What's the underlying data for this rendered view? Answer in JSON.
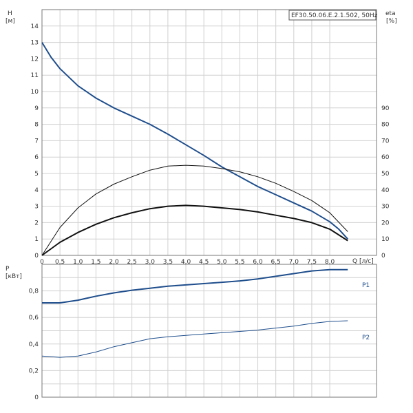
{
  "chart_data": [
    {
      "type": "line",
      "title": "EF30.50.06.E.2.1.502, 50Hz",
      "xlabel": "Q [л/с]",
      "ylabel_left_name": "H",
      "ylabel_left_unit": "[м]",
      "ylabel_right_name": "eta",
      "ylabel_right_unit": "[%]",
      "x_ticks": [
        "0",
        "0,5",
        "1,0",
        "1,5",
        "2,0",
        "2,5",
        "3,0",
        "3,5",
        "4,0",
        "4,5",
        "5,0",
        "5,5",
        "6,0",
        "6,5",
        "7,0",
        "7,5",
        "8,0"
      ],
      "y_left_ticks": [
        "0",
        "1",
        "2",
        "3",
        "4",
        "5",
        "6",
        "7",
        "8",
        "9",
        "10",
        "11",
        "12",
        "13",
        "14"
      ],
      "y_right_ticks": [
        "0",
        "10",
        "20",
        "30",
        "40",
        "50",
        "60",
        "70",
        "80",
        "90"
      ],
      "xlim": [
        0,
        9.3
      ],
      "ylim_left": [
        0,
        15
      ],
      "ylim_right": [
        0,
        150
      ],
      "grid": true,
      "series": [
        {
          "axis": "left",
          "color": "#1f4e8c",
          "points": [
            [
              0,
              13
            ],
            [
              0.25,
              12.1
            ],
            [
              0.5,
              11.4
            ],
            [
              1,
              10.35
            ],
            [
              1.5,
              9.6
            ],
            [
              2,
              9.0
            ],
            [
              2.5,
              8.5
            ],
            [
              3,
              8.0
            ],
            [
              3.5,
              7.4
            ],
            [
              4,
              6.75
            ],
            [
              4.5,
              6.1
            ],
            [
              5,
              5.4
            ],
            [
              5.5,
              4.8
            ],
            [
              6,
              4.2
            ],
            [
              6.5,
              3.7
            ],
            [
              7,
              3.2
            ],
            [
              7.5,
              2.7
            ],
            [
              8,
              2.05
            ],
            [
              8.25,
              1.6
            ],
            [
              8.5,
              1.0
            ]
          ]
        },
        {
          "axis": "right",
          "color": "#111111",
          "points": [
            [
              0,
              0
            ],
            [
              0.5,
              17
            ],
            [
              1,
              29
            ],
            [
              1.5,
              37.5
            ],
            [
              2,
              43.5
            ],
            [
              2.5,
              48
            ],
            [
              3,
              52
            ],
            [
              3.5,
              54.5
            ],
            [
              4,
              55
            ],
            [
              4.5,
              54.5
            ],
            [
              5,
              53
            ],
            [
              5.5,
              51
            ],
            [
              6,
              48
            ],
            [
              6.5,
              44
            ],
            [
              7,
              39
            ],
            [
              7.5,
              33.5
            ],
            [
              8,
              26
            ],
            [
              8.5,
              14.5
            ]
          ]
        },
        {
          "axis": "right",
          "color": "#111111",
          "points": [
            [
              0,
              0
            ],
            [
              0.5,
              8
            ],
            [
              1,
              14
            ],
            [
              1.5,
              19
            ],
            [
              2,
              23
            ],
            [
              2.5,
              26
            ],
            [
              3,
              28.5
            ],
            [
              3.5,
              30
            ],
            [
              4,
              30.5
            ],
            [
              4.5,
              30
            ],
            [
              5,
              29
            ],
            [
              5.5,
              28
            ],
            [
              6,
              26.5
            ],
            [
              6.5,
              24.5
            ],
            [
              7,
              22.5
            ],
            [
              7.5,
              20
            ],
            [
              8,
              16
            ],
            [
              8.5,
              9
            ]
          ]
        }
      ]
    },
    {
      "type": "line",
      "ylabel_name": "P",
      "ylabel_unit": "[кВт]",
      "y_ticks": [
        "0",
        "0,2",
        "0,4",
        "0,6",
        "0,8"
      ],
      "xlim": [
        0,
        9.3
      ],
      "ylim": [
        0,
        1.0
      ],
      "grid": true,
      "series": [
        {
          "name": "P1",
          "color": "#1f4e8c",
          "points": [
            [
              0,
              0.71
            ],
            [
              0.5,
              0.71
            ],
            [
              1,
              0.73
            ],
            [
              1.5,
              0.76
            ],
            [
              2,
              0.785
            ],
            [
              2.5,
              0.805
            ],
            [
              3,
              0.82
            ],
            [
              3.5,
              0.835
            ],
            [
              4,
              0.845
            ],
            [
              4.5,
              0.855
            ],
            [
              5,
              0.865
            ],
            [
              5.5,
              0.875
            ],
            [
              6,
              0.89
            ],
            [
              6.5,
              0.91
            ],
            [
              7,
              0.93
            ],
            [
              7.5,
              0.95
            ],
            [
              8,
              0.96
            ],
            [
              8.5,
              0.96
            ]
          ]
        },
        {
          "name": "P2",
          "color": "#1f4e8c",
          "points": [
            [
              0,
              0.31
            ],
            [
              0.5,
              0.3
            ],
            [
              1,
              0.31
            ],
            [
              1.5,
              0.34
            ],
            [
              2,
              0.38
            ],
            [
              2.5,
              0.41
            ],
            [
              3,
              0.44
            ],
            [
              3.5,
              0.455
            ],
            [
              4,
              0.465
            ],
            [
              4.5,
              0.475
            ],
            [
              5,
              0.485
            ],
            [
              5.5,
              0.495
            ],
            [
              6,
              0.505
            ],
            [
              6.5,
              0.52
            ],
            [
              7,
              0.535
            ],
            [
              7.5,
              0.555
            ],
            [
              8,
              0.57
            ],
            [
              8.5,
              0.575
            ]
          ]
        }
      ]
    }
  ]
}
